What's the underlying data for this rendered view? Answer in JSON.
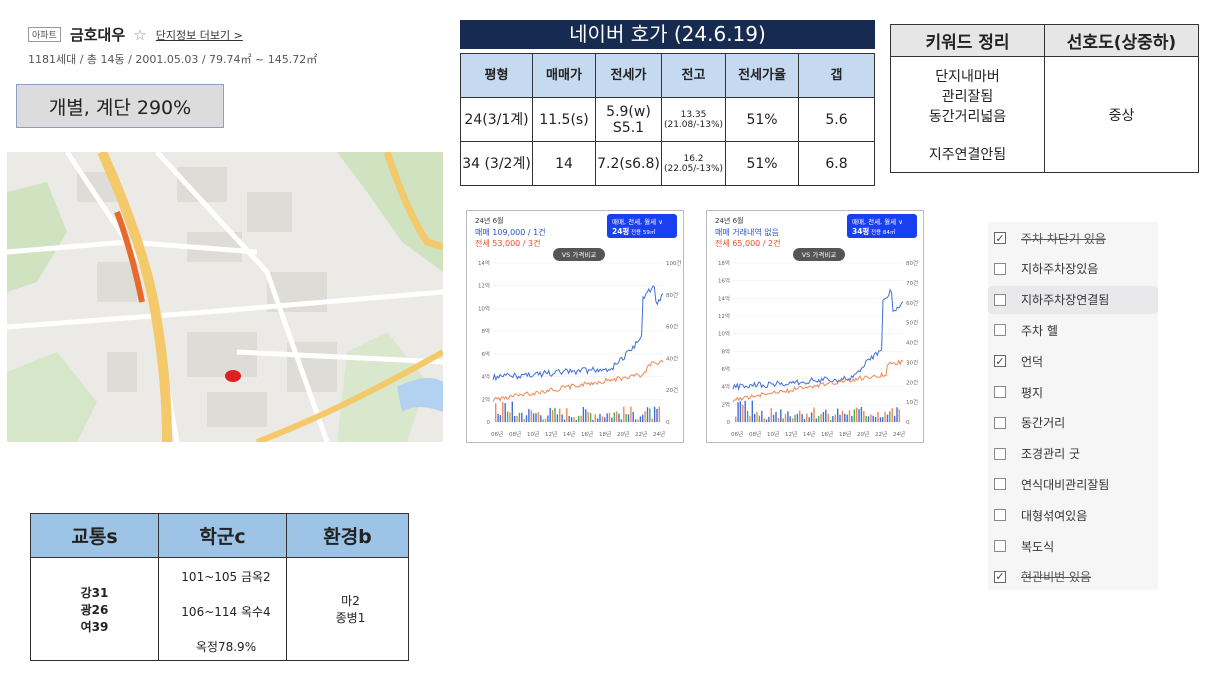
{
  "header": {
    "tag": "아파트",
    "name": "금호대우",
    "star": "☆",
    "more_link": "단지정보 더보기 >",
    "summary": "1181세대 / 총 14동 / 2001.05.03 / 79.74㎡ ~ 145.72㎡"
  },
  "badge": "개별, 계단 290%",
  "price_table": {
    "title": "네이버 호가 (24.6.19)",
    "headers": [
      "평형",
      "매매가",
      "전세가",
      "전고",
      "전세가율",
      "갭"
    ],
    "rows": [
      {
        "type": "24(3/1계)",
        "sale": "11.5(s)",
        "jeonse": "5.9(w) S5.1",
        "peak": "13.35 (21.08/-13%)",
        "ratio": "51%",
        "gap": "5.6"
      },
      {
        "type": "34 (3/2계)",
        "sale": "14",
        "jeonse": "7.2(s6.8)",
        "peak": "16.2 (22.05/-13%)",
        "ratio": "51%",
        "gap": "6.8"
      }
    ]
  },
  "keyword_table": {
    "headers": [
      "키워드 정리",
      "선호도(상중하)"
    ],
    "keywords": [
      "단지내마버",
      "관리잘됨",
      "동간거리넓음",
      "",
      "지주연결안됨"
    ],
    "preference": "중상"
  },
  "charts": [
    {
      "month": "24년 6월",
      "sale_line": "매매 109,000 / 1건",
      "jeonse_line": "전세 53,000 / 3건",
      "filter_label": "매매, 전세, 월세",
      "size_label": "24평",
      "size_detail": "전용 59㎡",
      "compare_btn": "VS 가격비교",
      "y_left": [
        "14억",
        "12억",
        "10억",
        "8억",
        "6억",
        "4억",
        "2억",
        "0"
      ],
      "y_right": [
        "100건",
        "80건",
        "60건",
        "40건",
        "20건",
        "0"
      ],
      "x_ticks": [
        "06년",
        "08년",
        "10년",
        "12년",
        "14년",
        "16년",
        "18년",
        "20년",
        "22년",
        "24년"
      ]
    },
    {
      "month": "24년 6월",
      "sale_line": "매매 거래내역 없음",
      "jeonse_line": "전세 65,000 / 2건",
      "filter_label": "매매, 전세, 월세",
      "size_label": "34평",
      "size_detail": "전용 84㎡",
      "compare_btn": "VS 가격비교",
      "y_left": [
        "18억",
        "16억",
        "14억",
        "12억",
        "10억",
        "8억",
        "6억",
        "4억",
        "2억",
        "0"
      ],
      "y_right": [
        "80건",
        "70건",
        "60건",
        "50건",
        "40건",
        "30건",
        "20건",
        "10건",
        "0"
      ],
      "x_ticks": [
        "06년",
        "08년",
        "10년",
        "12년",
        "14년",
        "16년",
        "18년",
        "20년",
        "22년",
        "24년"
      ]
    }
  ],
  "checklist": [
    {
      "label": "주차 차단기 있음",
      "checked": true,
      "struck": true
    },
    {
      "label": "지하주차장있음",
      "checked": false,
      "struck": false
    },
    {
      "label": "지하주차장연결됨",
      "checked": false,
      "struck": false
    },
    {
      "label": "주차 헬",
      "checked": false,
      "struck": false
    },
    {
      "label": "언덕",
      "checked": true,
      "struck": false
    },
    {
      "label": "평지",
      "checked": false,
      "struck": false
    },
    {
      "label": "동간거리",
      "checked": false,
      "struck": false
    },
    {
      "label": "조경관리 굿",
      "checked": false,
      "struck": false
    },
    {
      "label": "연식대비관리잘됨",
      "checked": false,
      "struck": false
    },
    {
      "label": "대형섞여있음",
      "checked": false,
      "struck": false
    },
    {
      "label": "복도식",
      "checked": false,
      "struck": false
    },
    {
      "label": "현관비번 있음",
      "checked": true,
      "struck": true
    }
  ],
  "env_table": {
    "headers": [
      "교통s",
      "학군c",
      "환경b"
    ],
    "transport": [
      "강31",
      "광26",
      "여39"
    ],
    "school": [
      "101~105 금옥2",
      "106~114 옥수4",
      "옥정78.9%"
    ],
    "environment": [
      "마2",
      "종병1"
    ]
  }
}
